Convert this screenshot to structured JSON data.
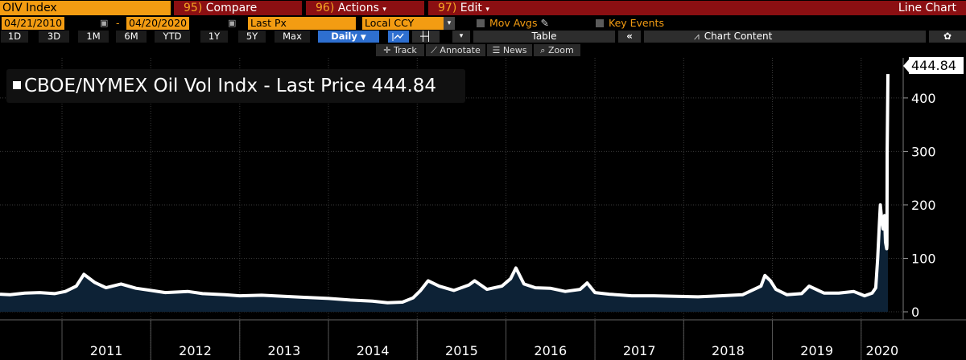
{
  "header": {
    "ticker": "OIV Index",
    "compare_num": "95)",
    "compare": "Compare",
    "actions_num": "96)",
    "actions": "Actions",
    "edit_num": "97)",
    "edit": "Edit",
    "chart_type": "Line Chart"
  },
  "controls": {
    "start_date": "04/21/2010",
    "dash": "-",
    "end_date": "04/20/2020",
    "field": "Last Px",
    "currency": "Local CCY",
    "mov_avgs": "Mov Avgs",
    "key_events": "Key Events"
  },
  "periods": [
    "1D",
    "3D",
    "1M",
    "6M",
    "YTD",
    "1Y",
    "5Y",
    "Max"
  ],
  "toolbar": {
    "frequency": "Daily",
    "table": "Table",
    "chart_content": "Chart Content",
    "collapse_icon": "double-chevron-left-icon",
    "settings_icon": "gear-icon"
  },
  "tools": [
    "Track",
    "Annotate",
    "News",
    "Zoom"
  ],
  "legend": {
    "series": "CBOE/NYMEX Oil Vol Indx - Last Price",
    "value": "444.84"
  },
  "last_value_tag": "444.84",
  "chart_data": {
    "type": "area",
    "title": "",
    "xlabel": "",
    "ylabel": "",
    "ylim": [
      -15,
      475
    ],
    "yticks": [
      0,
      100,
      200,
      300,
      400
    ],
    "xticks": [
      "2011",
      "2012",
      "2013",
      "2014",
      "2015",
      "2016",
      "2017",
      "2018",
      "2019",
      "2020"
    ],
    "x_range": [
      "2010-04-21",
      "2020-04-20"
    ],
    "grid": true,
    "colors": {
      "line": "#ffffff",
      "fill": "#0d2236",
      "grid": "#3a3a3a",
      "background": "#000000"
    },
    "series": [
      {
        "name": "CBOE/NYMEX Oil Vol Indx - Last Price",
        "x": [
          "2010-04-21",
          "2010-06-01",
          "2010-08-01",
          "2010-10-01",
          "2010-12-01",
          "2011-01-15",
          "2011-03-01",
          "2011-04-01",
          "2011-05-15",
          "2011-07-01",
          "2011-09-01",
          "2011-11-01",
          "2012-01-01",
          "2012-03-01",
          "2012-06-01",
          "2012-08-01",
          "2012-11-01",
          "2013-01-01",
          "2013-04-01",
          "2013-07-01",
          "2013-10-01",
          "2014-01-01",
          "2014-04-01",
          "2014-07-01",
          "2014-09-01",
          "2014-11-01",
          "2014-12-15",
          "2015-01-15",
          "2015-02-15",
          "2015-04-01",
          "2015-06-01",
          "2015-08-01",
          "2015-08-25",
          "2015-10-15",
          "2015-12-15",
          "2016-01-20",
          "2016-02-11",
          "2016-03-15",
          "2016-05-01",
          "2016-07-01",
          "2016-09-01",
          "2016-11-01",
          "2016-11-30",
          "2017-01-01",
          "2017-03-01",
          "2017-06-01",
          "2017-09-01",
          "2017-12-01",
          "2018-03-01",
          "2018-06-01",
          "2018-09-01",
          "2018-11-15",
          "2018-12-01",
          "2018-12-24",
          "2019-01-15",
          "2019-03-01",
          "2019-05-01",
          "2019-06-01",
          "2019-08-01",
          "2019-10-01",
          "2019-12-01",
          "2020-01-15",
          "2020-02-15",
          "2020-03-01",
          "2020-03-09",
          "2020-03-16",
          "2020-03-20",
          "2020-03-25",
          "2020-03-31",
          "2020-04-06",
          "2020-04-10",
          "2020-04-15",
          "2020-04-16",
          "2020-04-17",
          "2020-04-20"
        ],
        "values": [
          33,
          32,
          35,
          36,
          34,
          38,
          48,
          70,
          55,
          45,
          52,
          44,
          40,
          36,
          38,
          34,
          32,
          30,
          31,
          29,
          27,
          25,
          22,
          20,
          17,
          18,
          26,
          40,
          58,
          48,
          40,
          50,
          58,
          42,
          48,
          62,
          82,
          52,
          45,
          44,
          38,
          42,
          54,
          36,
          33,
          30,
          30,
          29,
          28,
          30,
          32,
          48,
          68,
          58,
          42,
          32,
          34,
          48,
          35,
          35,
          38,
          30,
          35,
          45,
          100,
          165,
          200,
          175,
          155,
          180,
          130,
          118,
          125,
          300,
          444.84
        ]
      }
    ]
  }
}
